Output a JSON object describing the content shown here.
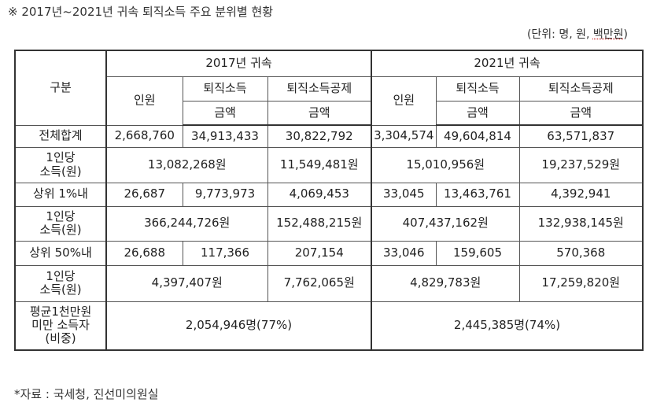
{
  "title": "※ 2017년~2021년 귀속 퇴직소득 주요 분위별 현황",
  "unit_prefix": "(단위: 명, 원, ",
  "unit_highlight": "백만원",
  "unit_suffix": ")",
  "header": {
    "category": "구분",
    "year2017": "2017년 귀속",
    "year2021": "2021년 귀속",
    "people": "인원",
    "income": "퇴직소득",
    "deduction": "퇴직소득공제",
    "amount": "금액"
  },
  "rows": {
    "total": {
      "label": "전체합계",
      "v2017": [
        "2,668,760",
        "34,913,433",
        "30,822,792"
      ],
      "v2021": [
        "3,304,574",
        "49,604,814",
        "63,571,837"
      ]
    },
    "total_per": {
      "label1": "1인당",
      "label2": "소득(원)",
      "v2017": [
        "13,082,268원",
        "11,549,481원"
      ],
      "v2021": [
        "15,010,956원",
        "19,237,529원"
      ]
    },
    "top1": {
      "label": "상위 1%내",
      "v2017": [
        "26,687",
        "9,773,973",
        "4,069,453"
      ],
      "v2021": [
        "33,045",
        "13,463,761",
        "4,392,941"
      ]
    },
    "top1_per": {
      "label1": "1인당",
      "label2": "소득(원)",
      "v2017": [
        "366,244,726원",
        "152,488,215원"
      ],
      "v2021": [
        "407,437,162원",
        "132,938,145원"
      ]
    },
    "top50": {
      "label": "상위 50%내",
      "v2017": [
        "26,688",
        "117,366",
        "207,154"
      ],
      "v2021": [
        "33,046",
        "159,605",
        "570,368"
      ]
    },
    "top50_per": {
      "label1": "1인당",
      "label2": "소득(원)",
      "v2017": [
        "4,397,407원",
        "7,762,065원"
      ],
      "v2021": [
        "4,829,783원",
        "17,259,820원"
      ]
    },
    "under10m": {
      "label1": "평균1천만원",
      "label2": "미만 소득자",
      "label3": "(비중)",
      "v2017": "2,054,946명(77%)",
      "v2021": "2,445,385명(74%)"
    }
  },
  "footer": "*자료 : 국세청, 진선미의원실"
}
